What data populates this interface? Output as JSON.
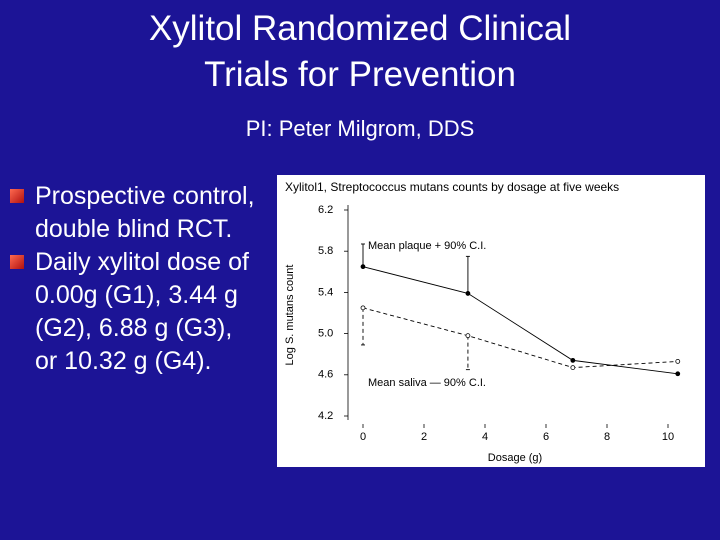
{
  "slide": {
    "title_lines": [
      "Xylitol Randomized Clinical",
      "Trials for Prevention"
    ],
    "subtitle": "PI: Peter Milgrom, DDS",
    "bullets": [
      "Prospective control, double blind RCT.",
      "Daily xylitol dose of 0.00g (G1), 3.44 g (G2), 6.88 g (G3), or 10.32 g (G4)."
    ]
  },
  "chart_data": {
    "type": "line",
    "title": "Xylitol1, Streptococcus mutans counts by dosage at five weeks",
    "y_label": "Log S. mutans count",
    "x_label": "Dosage (g)",
    "xlim": [
      0,
      10.5
    ],
    "xticks": [
      0,
      2,
      4,
      6,
      8,
      10
    ],
    "ylim": [
      4.2,
      6.2
    ],
    "yticks": [
      {
        "value": 4.2,
        "label": "4.2"
      },
      {
        "value": 4.6,
        "label": "4.6"
      },
      {
        "value": 5,
        "label": "5.0"
      },
      {
        "value": 5.4,
        "label": "5.4"
      },
      {
        "value": 5.8,
        "label": "5.8"
      },
      {
        "value": 6.2,
        "label": "6.2"
      }
    ],
    "x": [
      0,
      3.44,
      6.88,
      10.32
    ],
    "series": [
      {
        "name": "Mean plaque + 90% C.I.",
        "color": "#000000",
        "values": [
          5.65,
          5.39,
          4.74,
          4.61
        ],
        "errors": [
          0.22,
          0.36,
          null,
          null
        ],
        "error_side": "up",
        "dashed": false,
        "marker": "filled"
      },
      {
        "name": "Mean saliva — 90% C.I.",
        "color": "#000000",
        "values": [
          5.25,
          4.98,
          4.67,
          4.73
        ],
        "errors": [
          0.36,
          0.33,
          null,
          null
        ],
        "error_side": "down",
        "dashed": true,
        "marker": "open"
      }
    ]
  }
}
